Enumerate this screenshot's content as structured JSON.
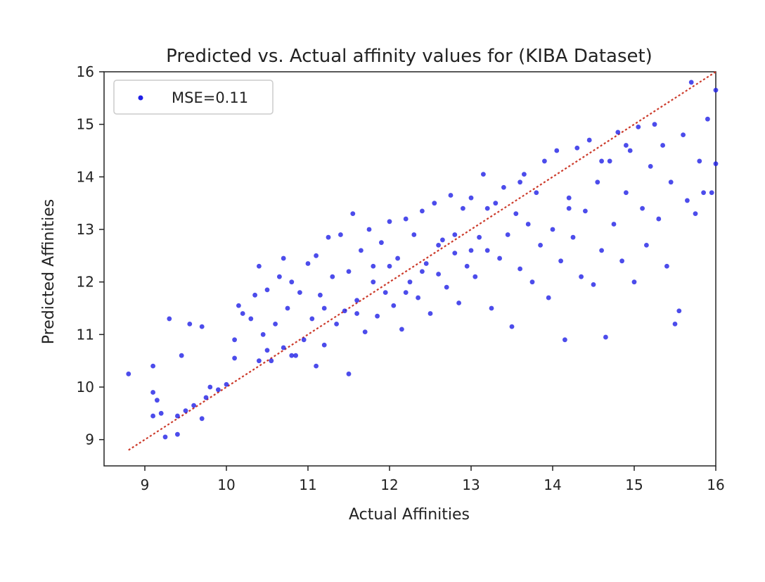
{
  "chart_data": {
    "type": "scatter",
    "title": "Predicted vs. Actual affinity values for (KIBA Dataset)",
    "xlabel": "Actual Affinities",
    "ylabel": "Predicted Affinities",
    "xlim": [
      8.5,
      16
    ],
    "ylim": [
      8.5,
      16
    ],
    "x_ticks": [
      9,
      10,
      11,
      12,
      13,
      14,
      15,
      16
    ],
    "y_ticks": [
      9,
      10,
      11,
      12,
      13,
      14,
      15,
      16
    ],
    "grid": false,
    "legend": {
      "position": "top-left",
      "entries": [
        "MSE=0.11"
      ]
    },
    "series": [
      {
        "name": "MSE=0.11",
        "kind": "scatter",
        "color": "#1f1fe6",
        "points": [
          [
            8.8,
            10.25
          ],
          [
            9.1,
            10.4
          ],
          [
            9.1,
            9.9
          ],
          [
            9.15,
            9.75
          ],
          [
            9.1,
            9.45
          ],
          [
            9.2,
            9.5
          ],
          [
            9.25,
            9.05
          ],
          [
            9.3,
            11.3
          ],
          [
            9.4,
            9.1
          ],
          [
            9.45,
            10.6
          ],
          [
            9.55,
            11.2
          ],
          [
            9.7,
            11.15
          ],
          [
            9.7,
            9.4
          ],
          [
            9.4,
            9.45
          ],
          [
            9.5,
            9.55
          ],
          [
            9.6,
            9.65
          ],
          [
            9.75,
            9.8
          ],
          [
            9.8,
            10.0
          ],
          [
            9.9,
            9.95
          ],
          [
            10.0,
            10.05
          ],
          [
            10.1,
            10.55
          ],
          [
            10.1,
            10.9
          ],
          [
            10.15,
            11.55
          ],
          [
            10.2,
            11.4
          ],
          [
            10.3,
            11.3
          ],
          [
            10.35,
            11.75
          ],
          [
            10.4,
            12.3
          ],
          [
            10.45,
            11.0
          ],
          [
            10.5,
            10.7
          ],
          [
            10.5,
            11.85
          ],
          [
            10.55,
            10.5
          ],
          [
            10.6,
            11.2
          ],
          [
            10.65,
            12.1
          ],
          [
            10.7,
            10.75
          ],
          [
            10.7,
            12.45
          ],
          [
            10.75,
            11.5
          ],
          [
            10.8,
            12.0
          ],
          [
            10.85,
            10.6
          ],
          [
            10.9,
            11.8
          ],
          [
            10.95,
            10.9
          ],
          [
            11.0,
            12.35
          ],
          [
            11.05,
            11.3
          ],
          [
            11.1,
            10.4
          ],
          [
            11.1,
            12.5
          ],
          [
            11.15,
            11.75
          ],
          [
            11.2,
            10.8
          ],
          [
            11.25,
            12.85
          ],
          [
            11.3,
            12.1
          ],
          [
            11.35,
            11.2
          ],
          [
            11.4,
            12.9
          ],
          [
            11.45,
            11.45
          ],
          [
            11.5,
            10.25
          ],
          [
            11.5,
            12.2
          ],
          [
            11.55,
            13.3
          ],
          [
            11.6,
            11.65
          ],
          [
            11.65,
            12.6
          ],
          [
            11.7,
            11.05
          ],
          [
            11.75,
            13.0
          ],
          [
            11.8,
            12.3
          ],
          [
            11.85,
            11.35
          ],
          [
            11.9,
            12.75
          ],
          [
            11.95,
            11.8
          ],
          [
            12.0,
            13.15
          ],
          [
            12.05,
            11.55
          ],
          [
            12.1,
            12.45
          ],
          [
            12.15,
            11.1
          ],
          [
            12.2,
            13.2
          ],
          [
            12.25,
            12.0
          ],
          [
            12.3,
            12.9
          ],
          [
            12.35,
            11.7
          ],
          [
            12.4,
            13.35
          ],
          [
            12.45,
            12.35
          ],
          [
            12.5,
            11.4
          ],
          [
            12.55,
            13.5
          ],
          [
            12.6,
            12.15
          ],
          [
            12.65,
            12.8
          ],
          [
            12.7,
            11.9
          ],
          [
            12.75,
            13.65
          ],
          [
            12.8,
            12.55
          ],
          [
            12.85,
            11.6
          ],
          [
            12.9,
            13.4
          ],
          [
            12.95,
            12.3
          ],
          [
            13.0,
            13.6
          ],
          [
            13.05,
            12.1
          ],
          [
            13.1,
            12.85
          ],
          [
            13.15,
            14.05
          ],
          [
            13.2,
            12.6
          ],
          [
            13.25,
            11.5
          ],
          [
            13.3,
            13.5
          ],
          [
            13.35,
            12.45
          ],
          [
            13.4,
            13.8
          ],
          [
            13.45,
            12.9
          ],
          [
            13.5,
            11.15
          ],
          [
            13.55,
            13.3
          ],
          [
            13.6,
            12.25
          ],
          [
            13.65,
            14.05
          ],
          [
            13.7,
            13.1
          ],
          [
            13.75,
            12.0
          ],
          [
            13.8,
            13.7
          ],
          [
            13.85,
            12.7
          ],
          [
            13.9,
            14.3
          ],
          [
            13.95,
            11.7
          ],
          [
            14.0,
            13.0
          ],
          [
            14.05,
            14.5
          ],
          [
            14.1,
            12.4
          ],
          [
            14.15,
            10.9
          ],
          [
            14.2,
            13.6
          ],
          [
            14.25,
            12.85
          ],
          [
            14.3,
            14.55
          ],
          [
            14.35,
            12.1
          ],
          [
            14.4,
            13.35
          ],
          [
            14.45,
            14.7
          ],
          [
            14.5,
            11.95
          ],
          [
            14.55,
            13.9
          ],
          [
            14.6,
            12.6
          ],
          [
            14.65,
            10.95
          ],
          [
            14.7,
            14.3
          ],
          [
            14.75,
            13.1
          ],
          [
            14.8,
            14.85
          ],
          [
            14.85,
            12.4
          ],
          [
            14.9,
            13.7
          ],
          [
            14.95,
            14.5
          ],
          [
            15.0,
            12.0
          ],
          [
            15.05,
            14.95
          ],
          [
            15.1,
            13.4
          ],
          [
            15.15,
            12.7
          ],
          [
            15.2,
            14.2
          ],
          [
            15.25,
            15.0
          ],
          [
            15.3,
            13.2
          ],
          [
            15.35,
            14.6
          ],
          [
            15.4,
            12.3
          ],
          [
            15.45,
            13.9
          ],
          [
            15.5,
            11.2
          ],
          [
            15.55,
            11.45
          ],
          [
            15.6,
            14.8
          ],
          [
            15.65,
            13.55
          ],
          [
            15.7,
            15.8
          ],
          [
            15.75,
            13.3
          ],
          [
            15.8,
            14.3
          ],
          [
            15.85,
            13.7
          ],
          [
            15.9,
            15.1
          ],
          [
            15.95,
            13.7
          ],
          [
            16.0,
            15.65
          ],
          [
            16.0,
            14.25
          ],
          [
            14.2,
            13.4
          ],
          [
            13.6,
            13.9
          ],
          [
            13.2,
            13.4
          ],
          [
            12.8,
            12.9
          ],
          [
            12.4,
            12.2
          ],
          [
            12.0,
            12.3
          ],
          [
            11.6,
            11.4
          ],
          [
            11.2,
            11.5
          ],
          [
            10.8,
            10.6
          ],
          [
            10.4,
            10.5
          ],
          [
            14.6,
            14.3
          ],
          [
            14.9,
            14.6
          ],
          [
            13.0,
            12.6
          ],
          [
            12.6,
            12.7
          ],
          [
            12.2,
            11.8
          ],
          [
            11.8,
            12.0
          ]
        ]
      },
      {
        "name": "",
        "kind": "diagonal",
        "color": "#cc3a2a",
        "range": [
          8.8,
          16
        ]
      }
    ]
  }
}
